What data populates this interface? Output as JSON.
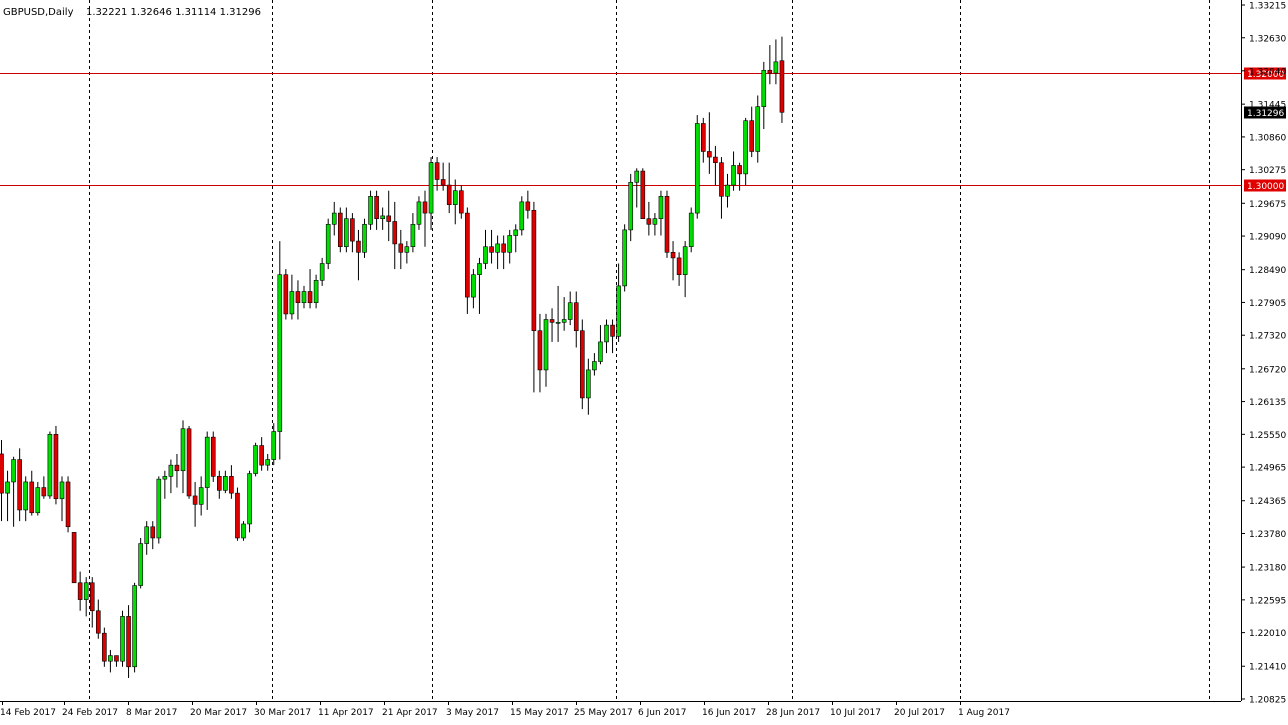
{
  "header": {
    "symbol": "GBPUSD,Daily",
    "ohlc": "1.32221 1.32646 1.31114 1.31296"
  },
  "colors": {
    "background": "#ffffff",
    "bull": "#00dd00",
    "bear": "#dd0000",
    "wick": "#000000",
    "grid": "#000000",
    "level_line": "#cc0000",
    "level_tag": "#e00000",
    "price_tag": "#000000"
  },
  "chart_data": {
    "type": "candlestick",
    "grid": true,
    "ylim": [
      1.20825,
      1.33215
    ],
    "y_ticks": [
      "1.33215",
      "1.32630",
      "1.32040",
      "1.31445",
      "1.30860",
      "1.30275",
      "1.29675",
      "1.29090",
      "1.28490",
      "1.27905",
      "1.27320",
      "1.26720",
      "1.26135",
      "1.25550",
      "1.24965",
      "1.24365",
      "1.23780",
      "1.23180",
      "1.22595",
      "1.22010",
      "1.21410",
      "1.20825"
    ],
    "x_ticks": [
      "14 Feb 2017",
      "24 Feb 2017",
      "8 Mar 2017",
      "20 Mar 2017",
      "30 Mar 2017",
      "11 Apr 2017",
      "21 Apr 2017",
      "3 May 2017",
      "15 May 2017",
      "25 May 2017",
      "6 Jun 2017",
      "16 Jun 2017",
      "28 Jun 2017",
      "10 Jul 2017",
      "20 Jul 2017",
      "1 Aug 2017"
    ],
    "horizontal_levels": [
      "1.32000",
      "1.30000"
    ],
    "current_price": "1.31296",
    "candles": [
      [
        1.252,
        1.2545,
        1.24,
        1.245
      ],
      [
        1.245,
        1.249,
        1.24,
        1.247
      ],
      [
        1.247,
        1.2515,
        1.239,
        1.251
      ],
      [
        1.251,
        1.253,
        1.24,
        1.242
      ],
      [
        1.242,
        1.248,
        1.24,
        1.247
      ],
      [
        1.247,
        1.249,
        1.241,
        1.2415
      ],
      [
        1.2415,
        1.247,
        1.241,
        1.246
      ],
      [
        1.246,
        1.248,
        1.244,
        1.2445
      ],
      [
        1.2445,
        1.256,
        1.244,
        1.2555
      ],
      [
        1.2555,
        1.257,
        1.243,
        1.244
      ],
      [
        1.244,
        1.248,
        1.24,
        1.247
      ],
      [
        1.247,
        1.248,
        1.238,
        1.239
      ],
      [
        1.238,
        1.238,
        1.229,
        1.229
      ],
      [
        1.229,
        1.231,
        1.224,
        1.226
      ],
      [
        1.226,
        1.23,
        1.223,
        1.229
      ],
      [
        1.229,
        1.23,
        1.221,
        1.224
      ],
      [
        1.224,
        1.226,
        1.219,
        1.22
      ],
      [
        1.22,
        1.221,
        1.214,
        1.215
      ],
      [
        1.215,
        1.217,
        1.213,
        1.216
      ],
      [
        1.216,
        1.216,
        1.214,
        1.215
      ],
      [
        1.215,
        1.224,
        1.214,
        1.223
      ],
      [
        1.223,
        1.225,
        1.212,
        1.214
      ],
      [
        1.214,
        1.229,
        1.213,
        1.2285
      ],
      [
        1.2285,
        1.237,
        1.228,
        1.236
      ],
      [
        1.236,
        1.24,
        1.234,
        1.239
      ],
      [
        1.239,
        1.24,
        1.235,
        1.237
      ],
      [
        1.237,
        1.248,
        1.236,
        1.2475
      ],
      [
        1.2475,
        1.249,
        1.244,
        1.248
      ],
      [
        1.248,
        1.251,
        1.245,
        1.25
      ],
      [
        1.25,
        1.252,
        1.246,
        1.249
      ],
      [
        1.249,
        1.258,
        1.245,
        1.2565
      ],
      [
        1.2565,
        1.257,
        1.244,
        1.2445
      ],
      [
        1.2445,
        1.247,
        1.239,
        1.243
      ],
      [
        1.243,
        1.248,
        1.241,
        1.246
      ],
      [
        1.246,
        1.256,
        1.242,
        1.255
      ],
      [
        1.255,
        1.256,
        1.247,
        1.248
      ],
      [
        1.248,
        1.249,
        1.244,
        1.2455
      ],
      [
        1.2455,
        1.249,
        1.245,
        1.248
      ],
      [
        1.248,
        1.25,
        1.244,
        1.245
      ],
      [
        1.245,
        1.246,
        1.2365,
        1.237
      ],
      [
        1.237,
        1.24,
        1.2365,
        1.2395
      ],
      [
        1.2395,
        1.249,
        1.238,
        1.2485
      ],
      [
        1.2485,
        1.254,
        1.248,
        1.2535
      ],
      [
        1.2535,
        1.255,
        1.249,
        1.25
      ],
      [
        1.25,
        1.252,
        1.249,
        1.251
      ],
      [
        1.251,
        1.2575,
        1.25,
        1.256
      ],
      [
        1.256,
        1.29,
        1.251,
        1.284
      ],
      [
        1.284,
        1.285,
        1.276,
        1.277
      ],
      [
        1.277,
        1.284,
        1.276,
        1.281
      ],
      [
        1.281,
        1.283,
        1.276,
        1.279
      ],
      [
        1.279,
        1.282,
        1.278,
        1.281
      ],
      [
        1.281,
        1.285,
        1.278,
        1.279
      ],
      [
        1.279,
        1.284,
        1.278,
        1.283
      ],
      [
        1.283,
        1.287,
        1.282,
        1.286
      ],
      [
        1.286,
        1.294,
        1.285,
        1.293
      ],
      [
        1.293,
        1.297,
        1.291,
        1.295
      ],
      [
        1.295,
        1.296,
        1.288,
        1.289
      ],
      [
        1.289,
        1.296,
        1.288,
        1.294
      ],
      [
        1.294,
        1.295,
        1.288,
        1.29
      ],
      [
        1.29,
        1.292,
        1.283,
        1.288
      ],
      [
        1.288,
        1.294,
        1.287,
        1.293
      ],
      [
        1.293,
        1.299,
        1.292,
        1.298
      ],
      [
        1.298,
        1.299,
        1.292,
        1.294
      ],
      [
        1.294,
        1.296,
        1.292,
        1.2945
      ],
      [
        1.2945,
        1.299,
        1.29,
        1.2935
      ],
      [
        1.2935,
        1.297,
        1.285,
        1.2895
      ],
      [
        1.2895,
        1.292,
        1.285,
        1.288
      ],
      [
        1.288,
        1.29,
        1.286,
        1.289
      ],
      [
        1.289,
        1.295,
        1.288,
        1.293
      ],
      [
        1.293,
        1.298,
        1.292,
        1.297
      ],
      [
        1.297,
        1.299,
        1.289,
        1.295
      ],
      [
        1.295,
        1.305,
        1.292,
        1.304
      ],
      [
        1.304,
        1.305,
        1.299,
        1.301
      ],
      [
        1.301,
        1.304,
        1.299,
        1.3
      ],
      [
        1.3,
        1.304,
        1.295,
        1.2965
      ],
      [
        1.2965,
        1.301,
        1.293,
        1.299
      ],
      [
        1.299,
        1.3,
        1.294,
        1.295
      ],
      [
        1.295,
        1.296,
        1.277,
        1.28
      ],
      [
        1.28,
        1.285,
        1.278,
        1.284
      ],
      [
        1.284,
        1.287,
        1.277,
        1.286
      ],
      [
        1.286,
        1.292,
        1.285,
        1.289
      ],
      [
        1.289,
        1.292,
        1.286,
        1.288
      ],
      [
        1.288,
        1.291,
        1.285,
        1.2895
      ],
      [
        1.2895,
        1.291,
        1.285,
        1.288
      ],
      [
        1.288,
        1.292,
        1.286,
        1.291
      ],
      [
        1.291,
        1.293,
        1.288,
        1.292
      ],
      [
        1.292,
        1.298,
        1.291,
        1.297
      ],
      [
        1.297,
        1.299,
        1.294,
        1.2955
      ],
      [
        1.2955,
        1.297,
        1.263,
        1.274
      ],
      [
        1.274,
        1.277,
        1.263,
        1.267
      ],
      [
        1.267,
        1.277,
        1.264,
        1.276
      ],
      [
        1.276,
        1.278,
        1.272,
        1.2755
      ],
      [
        1.2755,
        1.282,
        1.272,
        1.2755
      ],
      [
        1.2755,
        1.28,
        1.274,
        1.276
      ],
      [
        1.276,
        1.281,
        1.275,
        1.279
      ],
      [
        1.279,
        1.281,
        1.271,
        1.274
      ],
      [
        1.274,
        1.276,
        1.26,
        1.262
      ],
      [
        1.262,
        1.269,
        1.259,
        1.267
      ],
      [
        1.267,
        1.27,
        1.266,
        1.2685
      ],
      [
        1.2685,
        1.275,
        1.268,
        1.272
      ],
      [
        1.272,
        1.276,
        1.27,
        1.275
      ],
      [
        1.275,
        1.276,
        1.27,
        1.273
      ],
      [
        1.273,
        1.286,
        1.272,
        1.282
      ],
      [
        1.282,
        1.293,
        1.281,
        1.292
      ],
      [
        1.292,
        1.302,
        1.29,
        1.3005
      ],
      [
        1.3005,
        1.303,
        1.296,
        1.3025
      ],
      [
        1.3025,
        1.303,
        1.294,
        1.294
      ],
      [
        1.294,
        1.297,
        1.291,
        1.293
      ],
      [
        1.293,
        1.295,
        1.291,
        1.294
      ],
      [
        1.294,
        1.299,
        1.291,
        1.298
      ],
      [
        1.298,
        1.299,
        1.287,
        1.288
      ],
      [
        1.288,
        1.29,
        1.283,
        1.287
      ],
      [
        1.287,
        1.288,
        1.282,
        1.284
      ],
      [
        1.284,
        1.29,
        1.28,
        1.289
      ],
      [
        1.289,
        1.296,
        1.288,
        1.295
      ],
      [
        1.295,
        1.3125,
        1.294,
        1.311
      ],
      [
        1.311,
        1.312,
        1.304,
        1.306
      ],
      [
        1.306,
        1.313,
        1.302,
        1.305
      ],
      [
        1.305,
        1.307,
        1.3,
        1.304
      ],
      [
        1.304,
        1.305,
        1.294,
        1.298
      ],
      [
        1.298,
        1.302,
        1.296,
        1.3
      ],
      [
        1.3,
        1.306,
        1.299,
        1.3035
      ],
      [
        1.3035,
        1.304,
        1.299,
        1.302
      ],
      [
        1.302,
        1.312,
        1.3,
        1.3115
      ],
      [
        1.3115,
        1.314,
        1.305,
        1.306
      ],
      [
        1.306,
        1.316,
        1.304,
        1.314
      ],
      [
        1.314,
        1.322,
        1.31,
        1.3205
      ],
      [
        1.3205,
        1.325,
        1.318,
        1.32
      ],
      [
        1.32,
        1.326,
        1.318,
        1.322
      ],
      [
        1.3222,
        1.3265,
        1.3111,
        1.313
      ]
    ]
  }
}
